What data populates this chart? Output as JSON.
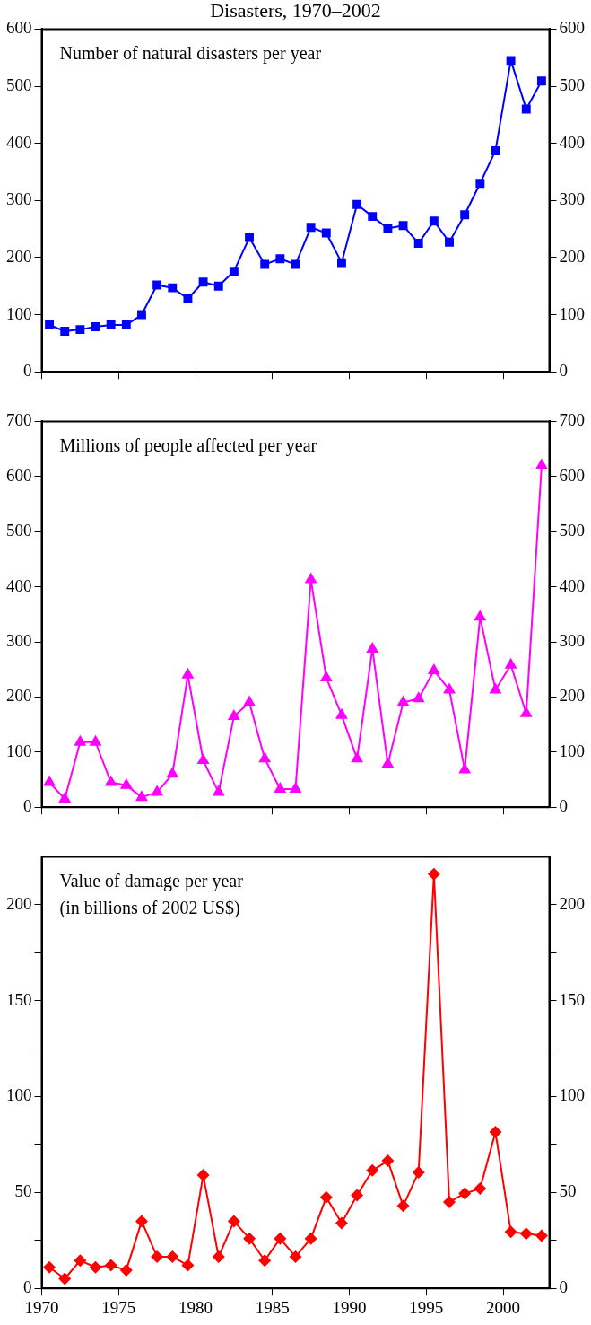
{
  "chart_data": [
    {
      "type": "line",
      "title": "Disasters, 1970–2002",
      "annotations": [
        "Number of natural disasters per year"
      ],
      "x": [
        1970.5,
        1971.5,
        1972.5,
        1973.5,
        1974.5,
        1975.5,
        1976.5,
        1977.5,
        1978.5,
        1979.5,
        1980.5,
        1981.5,
        1982.5,
        1983.5,
        1984.5,
        1985.5,
        1986.5,
        1987.5,
        1988.5,
        1989.5,
        1990.5,
        1991.5,
        1992.5,
        1993.5,
        1994.5,
        1995.5,
        1996.5,
        1997.5,
        1998.5,
        1999.5,
        2000.5,
        2001.5,
        2002.5
      ],
      "values": [
        82,
        71,
        74,
        79,
        82,
        82,
        100,
        152,
        147,
        128,
        157,
        150,
        176,
        235,
        188,
        198,
        188,
        253,
        243,
        191,
        293,
        272,
        251,
        256,
        225,
        264,
        227,
        275,
        330,
        387,
        545,
        460,
        509
      ],
      "color": "#0000ff",
      "marker": "square",
      "xlim": [
        1970,
        2003
      ],
      "xticks": [
        1970,
        1975,
        1980,
        1985,
        1990,
        1995,
        2000
      ],
      "ylim": [
        0,
        600
      ],
      "yticks": [
        0,
        100,
        200,
        300,
        400,
        500,
        600
      ],
      "y2lim": [
        0,
        600
      ],
      "y2ticks": [
        0,
        100,
        200,
        300,
        400,
        500,
        600
      ],
      "tick_labels": "y",
      "grid": false,
      "legend": false
    },
    {
      "type": "line",
      "annotations": [
        "Millions of people affected per year"
      ],
      "x": [
        1970.5,
        1971.5,
        1972.5,
        1973.5,
        1974.5,
        1975.5,
        1976.5,
        1977.5,
        1978.5,
        1979.5,
        1980.5,
        1981.5,
        1982.5,
        1983.5,
        1984.5,
        1985.5,
        1986.5,
        1987.5,
        1988.5,
        1989.5,
        1990.5,
        1991.5,
        1992.5,
        1993.5,
        1994.5,
        1995.5,
        1996.5,
        1997.5,
        1998.5,
        1999.5,
        2000.5,
        2001.5,
        2002.5
      ],
      "values": [
        45,
        15,
        118,
        118,
        45,
        40,
        18,
        27,
        60,
        240,
        85,
        27,
        165,
        190,
        88,
        33,
        33,
        413,
        235,
        167,
        88,
        287,
        78,
        190,
        197,
        248,
        213,
        68,
        345,
        213,
        258,
        170,
        620
      ],
      "color": "#ff00ff",
      "marker": "triangle",
      "xlim": [
        1970,
        2003
      ],
      "xticks": [
        1970,
        1975,
        1980,
        1985,
        1990,
        1995,
        2000
      ],
      "ylim": [
        0,
        700
      ],
      "yticks": [
        0,
        100,
        200,
        300,
        400,
        500,
        600,
        700
      ],
      "y2lim": [
        0,
        700
      ],
      "y2ticks": [
        0,
        100,
        200,
        300,
        400,
        500,
        600,
        700
      ],
      "tick_labels": "y",
      "grid": false,
      "legend": false
    },
    {
      "type": "line",
      "annotations": [
        "Value of damage per year\n(in billions of 2002 US$)"
      ],
      "x": [
        1970.5,
        1971.5,
        1972.5,
        1973.5,
        1974.5,
        1975.5,
        1976.5,
        1977.5,
        1978.5,
        1979.5,
        1980.5,
        1981.5,
        1982.5,
        1983.5,
        1984.5,
        1985.5,
        1986.5,
        1987.5,
        1988.5,
        1989.5,
        1990.5,
        1991.5,
        1992.5,
        1993.5,
        1994.5,
        1995.5,
        1996.5,
        1997.5,
        1998.5,
        1999.5,
        2000.5,
        2001.5,
        2002.5
      ],
      "values": [
        11,
        5,
        14.5,
        11,
        12,
        9.5,
        35,
        16.5,
        16.5,
        12,
        59,
        16.5,
        35,
        26,
        14.5,
        26,
        16.5,
        26,
        47.5,
        34,
        48.5,
        61.5,
        66.5,
        43,
        60.5,
        216,
        45,
        49.5,
        52,
        81.5,
        29.5,
        28.5,
        27.5
      ],
      "color": "#ff0000",
      "marker": "diamond",
      "xlim": [
        1970,
        2003
      ],
      "xticks": [
        1970,
        1975,
        1980,
        1985,
        1990,
        1995,
        2000
      ],
      "ylim": [
        0,
        225
      ],
      "yticks": [
        0,
        {
          "value": 25,
          "label": null
        },
        50,
        {
          "value": 75,
          "label": null
        },
        100,
        {
          "value": 125,
          "label": null
        },
        150,
        {
          "value": 175,
          "label": null
        },
        200
      ],
      "y2lim": [
        0,
        225
      ],
      "y2ticks": [
        0,
        {
          "value": 25,
          "label": null
        },
        50,
        {
          "value": 75,
          "label": null
        },
        100,
        {
          "value": 125,
          "label": null
        },
        150,
        {
          "value": 175,
          "label": null
        },
        200
      ],
      "grid": false,
      "legend": false
    }
  ]
}
